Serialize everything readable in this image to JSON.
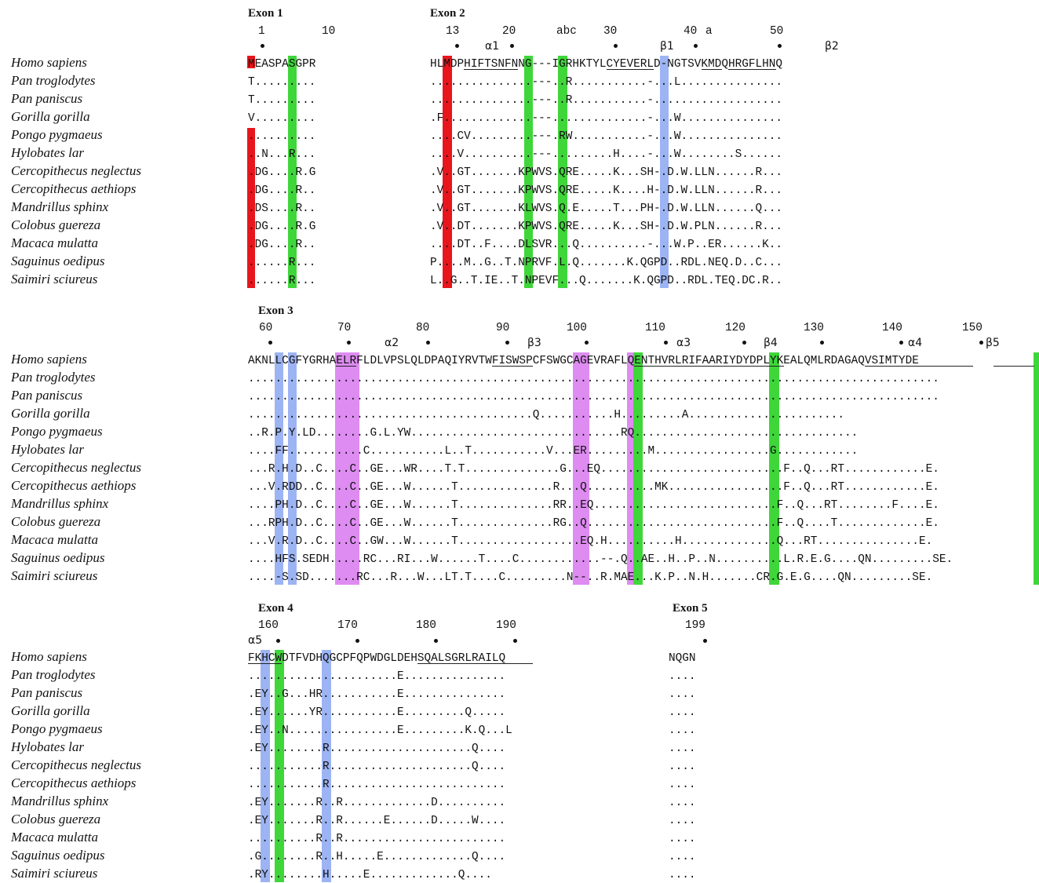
{
  "colors": {
    "red": "#e8161c",
    "green": "#3fd63a",
    "blue": "#9db4f4",
    "purple": "#de8cf1"
  },
  "species": [
    "Homo sapiens",
    "Pan troglodytes",
    "Pan paniscus",
    "Gorilla gorilla",
    "Pongo pygmaeus",
    "Hylobates lar",
    "Cercopithecus neglectus",
    "Cercopithecus aethiops",
    "Mandrillus sphinx",
    "Colobus guereza",
    "Macaca mulatta",
    "Saguinus oedipus",
    "Saimiri sciureus"
  ],
  "blocks": [
    {
      "exons": [
        {
          "label": "Exon 1"
        },
        {
          "label": "Exon 2"
        }
      ],
      "positions": [
        "1",
        "10",
        "13",
        "20",
        "abc",
        "30",
        "40",
        "a",
        "50"
      ],
      "structure": [
        "α1",
        "β1",
        "β2"
      ],
      "segments": [
        {
          "rows": [
            "MEASPASGPR",
            "T.........",
            "T.........",
            "V.........",
            "..........",
            "..N...R...",
            ".DG....R.G",
            ".DG....R..",
            ".DS....R..",
            ".DG....R.G",
            ".DG....R..",
            "......R...",
            "......R..."
          ]
        },
        {
          "rows": [
            "HLMDPHIFTSNFNNG---IGRHKTYLCYEVERLD-NGTSVKMDQHRGFLHNQ",
            "...............---..R...........-...L...............",
            "...............---..R...........-...................",
            ".F.............---..............-...W...............",
            "....CV.........---.RW...........-...W...............",
            "....V..........---.........H....-...W........S......",
            ".V..GT.......KPWVS.QRE.....K...SH-.D.W.LLN......R...",
            ".V..GT.......KPWVS.QRE.....K....H-.D.W.LLN......R...",
            ".V..GT.......KLWVS.Q.E.....T...PH-.D.W.LLN......Q...",
            ".V..DT.......KPWVS.QRE.....K...SH-.D.W.PLN......R...",
            "....DT..F....DLSVR...Q..........-...W.P..ER......K..",
            "P....M..G..T.NPRVF.L.Q.......K.QGPD..RDL.NEQ.D..C...",
            "L..G..T.IE..T.NPEVF...Q.......K.QGPD..RDL.TEQ.DC.R.."
          ]
        }
      ]
    },
    {
      "exons": [
        {
          "label": "Exon 3"
        }
      ],
      "positions": [
        "60",
        "70",
        "80",
        "90",
        "100",
        "110",
        "120",
        "130",
        "140",
        "150"
      ],
      "structure": [
        "α2",
        "β3",
        "α3",
        "β4",
        "α4",
        "β5"
      ],
      "segments": [
        {
          "rows": [
            "AKNLLCGFYGRHAELRFLDLVPSLQLDPAQIYRVTWFISWSPCFSWGCAGEVRAFLQENTHVRLRIFAARIYDYDPLYKEALQMLRDAGAQVSIMTYDE",
            "......................................................................................................",
            "......................................................................................................",
            "..........................................Q...........H.........A.......................",
            "..R.P.Y.LD........G.L.YW...............................RQ.................................",
            "....FF...........C...........L..T...........V...ER.........M.................G............",
            "...R.H.D..C....C..GE...WR....T.T..............G...EQ...........................F..Q...RT............E.",
            "...V.RDD..C....C..GE...W......T..............R...Q..........MK.................F..Q...RT............E.",
            "....PH.D..C....C..GE...W......T..............RR..EQ...........................F..Q...RT........F....E.",
            "...RPH.D..C....C..GE...W......T..............RG..Q............................F..Q....T.............E.",
            "...V.R.D..C....C..GW...W......T..................EQ.H..........H..............Q...RT...............E.",
            "....HFS.SEDH.....RC...RI...W......T....C............--.Q..AE..H..P..N..........L.R.E.G....QN.........SE.",
            "....-S.SD.......RC...R...W...LT.T....C.........N--..R.MAE...K.P..N.H.......CR.G.E.G....QN.........SE."
          ]
        }
      ]
    },
    {
      "exons": [
        {
          "label": "Exon 4"
        },
        {
          "label": "Exon 5"
        }
      ],
      "positions": [
        "160",
        "170",
        "180",
        "190",
        "199"
      ],
      "structure": [
        "α5"
      ],
      "segments": [
        {
          "rows": [
            "FKHCWDTFVDHQGCPFQPWDGLDEHSQALSGRLRAILQ",
            "......................E...............",
            ".EY..G...HR...........E...............",
            ".EY......YR...........E.........Q.....",
            ".EY..N................E.........K.Q...L",
            ".EY........R.....................Q....",
            "...........R.....................Q....",
            "...........R..........................",
            ".EY.......R..R.............D..........",
            ".EY.......R..R......E......D.....W....",
            "..........R..R........................",
            ".G........R..H.....E.............Q....",
            ".RY........H.....E.............Q...."
          ]
        },
        {
          "rows": [
            "NQGN",
            "....",
            "....",
            "....",
            "....",
            "....",
            "....",
            "....",
            "....",
            "....",
            "....",
            "....",
            "...."
          ]
        }
      ]
    }
  ]
}
